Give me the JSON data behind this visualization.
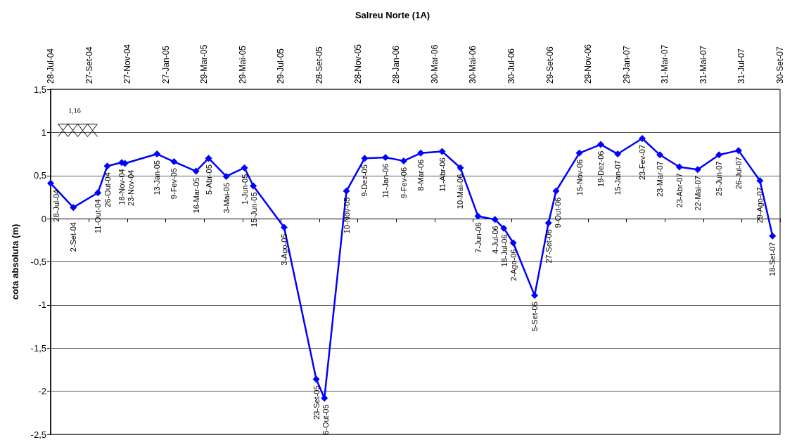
{
  "chart_data": {
    "type": "line",
    "title": "Salreu Norte (1A)",
    "ylabel": "cota absoluta (m)",
    "annotations": [
      "1,16"
    ],
    "x": [
      "2004-07-28",
      "2004-09-02",
      "2004-10-11",
      "2004-10-26",
      "2004-11-18",
      "2004-11-23",
      "2005-01-13",
      "2005-02-09",
      "2005-03-16",
      "2005-04-05",
      "2005-05-03",
      "2005-06-01",
      "2005-06-15",
      "2005-08-03",
      "2005-09-23",
      "2005-10-06",
      "2005-11-10",
      "2005-12-09",
      "2006-01-11",
      "2006-02-09",
      "2006-03-08",
      "2006-04-11",
      "2006-05-10",
      "2006-06-07",
      "2006-07-04",
      "2006-07-18",
      "2006-08-02",
      "2006-09-05",
      "2006-09-27",
      "2006-10-09",
      "2006-11-15",
      "2006-12-19",
      "2007-01-15",
      "2007-02-23",
      "2007-03-23",
      "2007-04-23",
      "2007-05-22",
      "2007-06-25",
      "2007-07-26",
      "2007-08-29",
      "2007-09-18"
    ],
    "values": [
      0.41,
      0.13,
      0.3,
      0.61,
      0.65,
      0.64,
      0.75,
      0.66,
      0.55,
      0.7,
      0.49,
      0.59,
      0.38,
      -0.1,
      -1.86,
      -2.08,
      0.32,
      0.7,
      0.71,
      0.67,
      0.76,
      0.78,
      0.59,
      0.03,
      -0.01,
      -0.11,
      -0.28,
      -0.89,
      -0.05,
      0.32,
      0.76,
      0.86,
      0.75,
      0.93,
      0.74,
      0.6,
      0.57,
      0.74,
      0.79,
      0.44,
      -0.2
    ],
    "value_labels": [
      "28-Jul-04",
      "2-Set-04",
      "11-Out-04",
      "26-Out-04",
      "18-Nov-04",
      "23-Nov-04",
      "13-Jan-05",
      "9-Fev-05",
      "16-Mar-05",
      "5-Abr-05",
      "3-Mai-05",
      "1-Jun-05",
      "15-Jun-05",
      "3-Ago-05",
      "23-Set-05",
      "6-Out-05",
      "10-Nov-05",
      "9-Dez-05",
      "11-Jan-06",
      "9-Fev-06",
      "8-Mar-06",
      "11-Abr-06",
      "10-Mai-06",
      "7-Jun-06",
      "4-Jul-06",
      "18-Jul-06",
      "2-Ago-06",
      "5-Set-06",
      "27-Set-06",
      "9-Out-06",
      "15-Nov-06",
      "19-Dez-06",
      "15-Jan-07",
      "23-Fev-07",
      "23-Mar-07",
      "23-Abr-07",
      "22-Mai-07",
      "25-Jun-07",
      "26-Jul-07",
      "29-Ago-07",
      "18-Set-07"
    ],
    "color": "#0000ff",
    "marker": "diamond",
    "line_style": "solid",
    "grid": "y",
    "xlim": [
      "2004-07-28",
      "2007-09-30"
    ],
    "xticks": [
      {
        "value": "2004-07-28",
        "label": "28-Jul-04"
      },
      {
        "value": "2004-09-27",
        "label": "27-Set-04"
      },
      {
        "value": "2004-11-27",
        "label": "27-Nov-04"
      },
      {
        "value": "2005-01-27",
        "label": "27-Jan-05"
      },
      {
        "value": "2005-03-29",
        "label": "29-Mar-05"
      },
      {
        "value": "2005-05-29",
        "label": "29-Mai-05"
      },
      {
        "value": "2005-07-29",
        "label": "29-Jul-05"
      },
      {
        "value": "2005-09-28",
        "label": "28-Set-05"
      },
      {
        "value": "2005-11-28",
        "label": "28-Nov-05"
      },
      {
        "value": "2006-01-28",
        "label": "28-Jan-06"
      },
      {
        "value": "2006-03-30",
        "label": "30-Mar-06"
      },
      {
        "value": "2006-05-30",
        "label": "30-Mai-06"
      },
      {
        "value": "2006-07-30",
        "label": "30-Jul-06"
      },
      {
        "value": "2006-09-29",
        "label": "29-Set-06"
      },
      {
        "value": "2006-11-29",
        "label": "29-Nov-06"
      },
      {
        "value": "2007-01-29",
        "label": "29-Jan-07"
      },
      {
        "value": "2007-03-31",
        "label": "31-Mar-07"
      },
      {
        "value": "2007-05-31",
        "label": "31-Mai-07"
      },
      {
        "value": "2007-07-31",
        "label": "31-Jul-07"
      },
      {
        "value": "2007-09-30",
        "label": "30-Set-07"
      }
    ],
    "ylim": [
      -2.5,
      1.5
    ],
    "yticks": [
      {
        "value": -2.5,
        "label": "-2,5"
      },
      -2,
      {
        "value": -1.5,
        "label": "-1,5"
      },
      -1,
      {
        "value": -0.5,
        "label": "-0,5"
      },
      0,
      {
        "value": 0.5,
        "label": "0,5"
      },
      1,
      {
        "value": 1.5,
        "label": "1,5"
      }
    ]
  }
}
